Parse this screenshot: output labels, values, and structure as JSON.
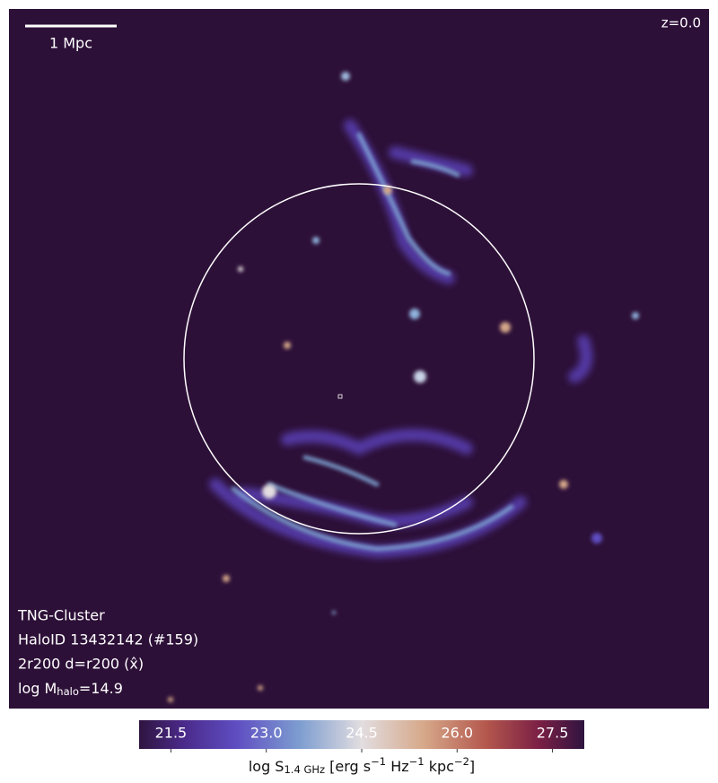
{
  "panel": {
    "redshift": "z=0.0",
    "scale_bar": "1 Mpc",
    "annotations": [
      "TNG-Cluster",
      "HaloID 13432142 (#159)",
      "2r200 d=r200 (x̂)"
    ],
    "mass_label": [
      {
        "text": "log M",
        "style": "normal"
      },
      {
        "text": "halo",
        "style": "sub"
      },
      {
        "text": "=14.9",
        "style": "normal"
      }
    ]
  },
  "colorbar": {
    "lim": [
      21,
      28
    ],
    "ticks": [
      21.5,
      {
        "value": 23,
        "label": "23.0"
      },
      24.5,
      {
        "value": 26,
        "label": "26.0"
      },
      27.5
    ],
    "label": [
      {
        "text": "log S",
        "style": "normal"
      },
      {
        "text": "1.4 GHz",
        "style": "sub"
      },
      {
        "text": " [erg s",
        "style": "normal"
      },
      {
        "text": "−1",
        "style": "sup"
      },
      {
        "text": " Hz",
        "style": "normal"
      },
      {
        "text": "−1",
        "style": "sup"
      },
      {
        "text": " kpc",
        "style": "normal"
      },
      {
        "text": "−2",
        "style": "sup"
      },
      {
        "text": "]",
        "style": "normal"
      }
    ]
  }
}
